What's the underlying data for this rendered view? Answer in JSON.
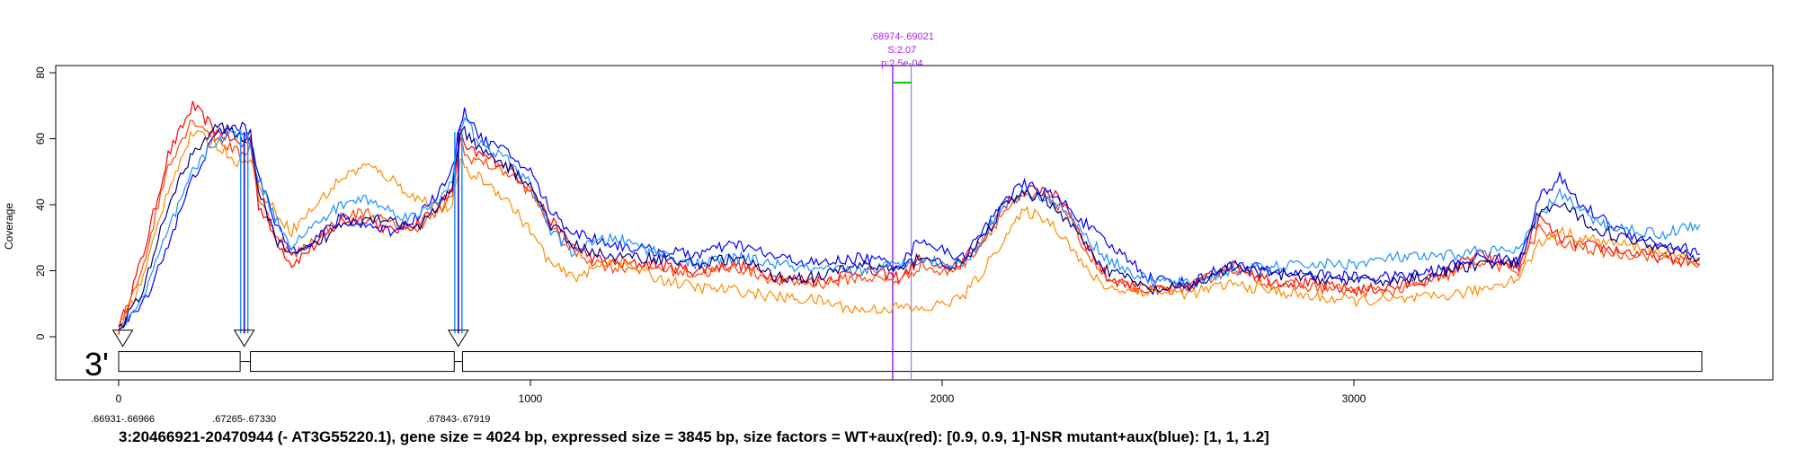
{
  "chart_data": {
    "type": "line",
    "title": "",
    "xlabel": "",
    "ylabel": "Coverage",
    "xlim": [
      -140,
      4100
    ],
    "ylim": [
      -13,
      82
    ],
    "x_ticks": [
      0,
      1000,
      2000,
      3000
    ],
    "x_tick_labels": [
      "0",
      "1000",
      "2000",
      "3000"
    ],
    "y_ticks": [
      0,
      20,
      40,
      60,
      80
    ],
    "y_tick_labels": [
      "0",
      "20",
      "40",
      "60",
      "80"
    ],
    "grid": false,
    "legend": "none",
    "strand_label": "3'",
    "caption": "3:20466921-20470944 (- AT3G55220.1), gene size = 4024 bp, expressed size = 3845 bp, size factors = WT+aux(red): [0.9, 0.9, 1]-NSR  mutant+aux(blue): [1, 1, 1.2]",
    "exons": [
      [
        0,
        295
      ],
      [
        320,
        815
      ],
      [
        835,
        3845
      ]
    ],
    "junctions": [
      {
        "x": 10,
        "label": ".66931-.66966"
      },
      {
        "x": 305,
        "label": ".67265-.67330"
      },
      {
        "x": 825,
        "label": ".67843-.67919"
      }
    ],
    "significant_region": {
      "start": 1880,
      "end": 1925,
      "label_lines": [
        ".68974-.69021",
        "S:2.07",
        "p:2.5e-04"
      ],
      "bar_y": 77,
      "line_color": "#a020f0",
      "line_color_2": "#7b68ee",
      "bar_color": "#00cc00"
    },
    "series": [
      {
        "group": "WT+aux",
        "color": "#ff0000",
        "x": [
          0,
          60,
          120,
          180,
          240,
          300,
          320,
          340,
          380,
          420,
          480,
          540,
          600,
          660,
          720,
          780,
          810,
          830,
          840,
          880,
          940,
          1000,
          1050,
          1100,
          1150,
          1200,
          1300,
          1400,
          1500,
          1600,
          1700,
          1800,
          1900,
          1950,
          2000,
          2050,
          2100,
          2150,
          2200,
          2250,
          2300,
          2350,
          2400,
          2450,
          2500,
          2600,
          2700,
          2800,
          2900,
          3000,
          3100,
          3200,
          3300,
          3400,
          3450,
          3500,
          3550,
          3600,
          3650,
          3700,
          3750,
          3800,
          3840
        ],
        "y": [
          2,
          25,
          55,
          70,
          62,
          58,
          60,
          40,
          30,
          22,
          28,
          35,
          36,
          32,
          34,
          40,
          44,
          63,
          57,
          55,
          52,
          45,
          35,
          28,
          24,
          22,
          22,
          20,
          22,
          18,
          17,
          20,
          18,
          24,
          20,
          23,
          30,
          40,
          44,
          45,
          40,
          28,
          18,
          16,
          14,
          15,
          22,
          17,
          16,
          14,
          15,
          18,
          25,
          21,
          36,
          30,
          28,
          27,
          26,
          25,
          24,
          23,
          22
        ]
      },
      {
        "group": "WT+aux",
        "color": "#ff4500",
        "x": [
          0,
          60,
          120,
          180,
          240,
          300,
          320,
          340,
          380,
          420,
          480,
          540,
          600,
          660,
          720,
          780,
          810,
          830,
          840,
          880,
          940,
          1000,
          1050,
          1100,
          1150,
          1200,
          1300,
          1400,
          1500,
          1600,
          1700,
          1800,
          1900,
          1950,
          2000,
          2050,
          2100,
          2150,
          2200,
          2250,
          2300,
          2350,
          2400,
          2450,
          2500,
          2600,
          2700,
          2800,
          2900,
          3000,
          3100,
          3200,
          3300,
          3400,
          3450,
          3500,
          3550,
          3600,
          3650,
          3700,
          3750,
          3800,
          3840
        ],
        "y": [
          2,
          22,
          52,
          66,
          60,
          55,
          58,
          42,
          32,
          24,
          30,
          36,
          38,
          34,
          33,
          38,
          42,
          60,
          55,
          53,
          50,
          44,
          33,
          26,
          23,
          21,
          21,
          19,
          21,
          17,
          16,
          18,
          17,
          22,
          19,
          22,
          29,
          38,
          42,
          43,
          38,
          26,
          17,
          15,
          14,
          15,
          21,
          16,
          15,
          14,
          14,
          17,
          23,
          20,
          33,
          28,
          27,
          26,
          25,
          25,
          24,
          23,
          22
        ]
      },
      {
        "group": "WT+aux",
        "color": "#ff8c00",
        "x": [
          0,
          60,
          120,
          180,
          240,
          300,
          320,
          340,
          380,
          420,
          480,
          540,
          600,
          660,
          720,
          780,
          810,
          830,
          840,
          880,
          940,
          1000,
          1050,
          1100,
          1150,
          1200,
          1300,
          1400,
          1500,
          1600,
          1700,
          1800,
          1900,
          1950,
          2000,
          2050,
          2100,
          2150,
          2200,
          2250,
          2300,
          2350,
          2400,
          2450,
          2500,
          2600,
          2700,
          2800,
          2900,
          3000,
          3100,
          3200,
          3300,
          3400,
          3450,
          3500,
          3550,
          3600,
          3650,
          3700,
          3750,
          3800,
          3840
        ],
        "y": [
          2,
          18,
          45,
          62,
          58,
          52,
          55,
          45,
          38,
          32,
          40,
          48,
          52,
          48,
          42,
          40,
          38,
          55,
          50,
          48,
          42,
          32,
          22,
          18,
          20,
          24,
          18,
          15,
          14,
          12,
          11,
          8,
          9,
          8,
          10,
          12,
          20,
          30,
          38,
          36,
          30,
          20,
          15,
          14,
          14,
          13,
          16,
          14,
          12,
          11,
          11,
          12,
          14,
          18,
          28,
          32,
          30,
          29,
          28,
          27,
          26,
          24,
          23
        ]
      },
      {
        "group": "mutant+aux",
        "color": "#0000ff",
        "x": [
          0,
          60,
          120,
          180,
          240,
          300,
          320,
          340,
          380,
          420,
          480,
          540,
          600,
          660,
          720,
          780,
          810,
          830,
          840,
          880,
          940,
          1000,
          1050,
          1100,
          1150,
          1200,
          1300,
          1400,
          1500,
          1600,
          1700,
          1800,
          1900,
          1950,
          2000,
          2050,
          2100,
          2150,
          2200,
          2250,
          2300,
          2350,
          2400,
          2450,
          2500,
          2600,
          2700,
          2800,
          2900,
          3000,
          3100,
          3200,
          3300,
          3400,
          3450,
          3500,
          3550,
          3600,
          3650,
          3700,
          3750,
          3800,
          3840
        ],
        "y": [
          2,
          10,
          28,
          48,
          62,
          64,
          60,
          50,
          34,
          26,
          30,
          36,
          34,
          32,
          36,
          44,
          50,
          65,
          69,
          60,
          56,
          50,
          38,
          32,
          30,
          28,
          26,
          25,
          28,
          24,
          22,
          24,
          22,
          30,
          26,
          24,
          32,
          42,
          46,
          44,
          40,
          34,
          28,
          24,
          18,
          16,
          22,
          20,
          19,
          18,
          18,
          20,
          24,
          23,
          42,
          48,
          40,
          36,
          32,
          30,
          28,
          27,
          25
        ]
      },
      {
        "group": "mutant+aux",
        "color": "#1e90ff",
        "x": [
          0,
          60,
          120,
          180,
          240,
          300,
          320,
          340,
          380,
          420,
          480,
          540,
          600,
          660,
          720,
          780,
          810,
          830,
          840,
          880,
          940,
          1000,
          1050,
          1100,
          1150,
          1200,
          1300,
          1400,
          1500,
          1600,
          1700,
          1800,
          1900,
          1950,
          2000,
          2050,
          2100,
          2150,
          2200,
          2250,
          2300,
          2350,
          2400,
          2450,
          2500,
          2600,
          2700,
          2800,
          2900,
          3000,
          3100,
          3200,
          3300,
          3400,
          3450,
          3500,
          3550,
          3600,
          3650,
          3700,
          3750,
          3800,
          3840
        ],
        "y": [
          2,
          12,
          32,
          50,
          60,
          62,
          58,
          48,
          36,
          28,
          34,
          40,
          42,
          38,
          36,
          42,
          48,
          62,
          66,
          58,
          54,
          46,
          32,
          26,
          28,
          30,
          26,
          22,
          24,
          22,
          20,
          20,
          22,
          24,
          22,
          22,
          30,
          40,
          44,
          42,
          38,
          30,
          24,
          20,
          17,
          16,
          20,
          21,
          22,
          22,
          24,
          24,
          26,
          26,
          36,
          44,
          38,
          34,
          33,
          32,
          31,
          33,
          34
        ]
      },
      {
        "group": "mutant+aux",
        "color": "#00008b",
        "x": [
          0,
          60,
          120,
          180,
          240,
          300,
          320,
          340,
          380,
          420,
          480,
          540,
          600,
          660,
          720,
          780,
          810,
          830,
          840,
          880,
          940,
          1000,
          1050,
          1100,
          1150,
          1200,
          1300,
          1400,
          1500,
          1600,
          1700,
          1800,
          1900,
          1950,
          2000,
          2050,
          2100,
          2150,
          2200,
          2250,
          2300,
          2350,
          2400,
          2450,
          2500,
          2600,
          2700,
          2800,
          2900,
          3000,
          3100,
          3200,
          3300,
          3400,
          3450,
          3500,
          3550,
          3600,
          3650,
          3700,
          3750,
          3800,
          3840
        ],
        "y": [
          2,
          14,
          40,
          56,
          64,
          60,
          62,
          44,
          30,
          24,
          28,
          34,
          36,
          36,
          32,
          40,
          46,
          60,
          62,
          56,
          52,
          46,
          34,
          28,
          26,
          24,
          24,
          22,
          24,
          18,
          18,
          22,
          20,
          25,
          22,
          22,
          30,
          40,
          43,
          42,
          36,
          28,
          20,
          18,
          14,
          15,
          21,
          19,
          18,
          17,
          17,
          19,
          22,
          22,
          38,
          40,
          36,
          32,
          30,
          29,
          27,
          26,
          24
        ]
      }
    ]
  }
}
